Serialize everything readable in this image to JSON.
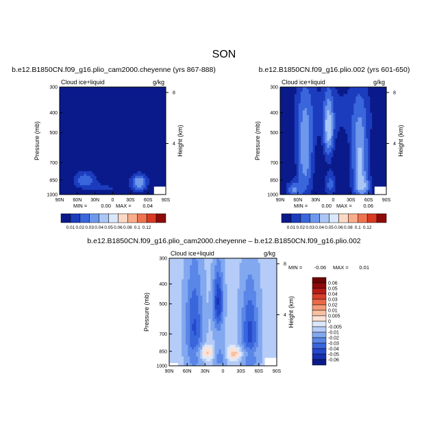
{
  "figure": {
    "title": "SON"
  },
  "chart_data": [
    {
      "type": "heatmap",
      "title": "b.e12.B1850CN.f09_g16.plio_cam2000.cheyenne (yrs 867-888)",
      "variable": "Cloud ice+liquid",
      "units": "g/kg",
      "xlabel": "",
      "ylabel": "Pressure (mb)",
      "y2label": "Height (km)",
      "xticks": [
        "90N",
        "60N",
        "30N",
        "0",
        "30S",
        "60S",
        "90S"
      ],
      "yticks": [
        300,
        400,
        500,
        700,
        850,
        1000
      ],
      "y2ticks": [
        8,
        4
      ],
      "xlim": [
        90,
        -90
      ],
      "ylim": [
        1000,
        300
      ],
      "min_label": "MIN =",
      "min_value": "0.00",
      "max_label": "MAX =",
      "max_value": "0.04",
      "levels": [
        0.01,
        0.02,
        0.03,
        0.04,
        0.05,
        0.06,
        0.08,
        0.1,
        0.12
      ],
      "level_labels": [
        "0.01",
        "0.02",
        "0.03",
        "0.04",
        "0.05",
        "0.06",
        "0.08",
        "0.1",
        "0.12"
      ],
      "colors": [
        "#0a1a8a",
        "#1c3cbe",
        "#3a66dc",
        "#6f98ec",
        "#a9c6f7",
        "#d8e7fb",
        "#fbd8c6",
        "#f7ad8c",
        "#ef7350",
        "#d83a22",
        "#8e0a0a"
      ],
      "features": [
        {
          "lat": 47,
          "p": 845,
          "sx": 14,
          "sp": 55,
          "amp": 0.028
        },
        {
          "lat": -45,
          "p": 875,
          "sx": 10,
          "sp": 60,
          "amp": 0.04
        },
        {
          "lat": 15,
          "p": 930,
          "sx": 25,
          "sp": 35,
          "amp": 0.012
        }
      ],
      "missing": [
        {
          "lat_from": -70,
          "lat_to": -90,
          "p_from": 915,
          "p_to": 1000
        }
      ]
    },
    {
      "type": "heatmap",
      "title": "b.e12.B1850CN.f09_g16.plio.002 (yrs 601-650)",
      "variable": "Cloud ice+liquid",
      "units": "g/kg",
      "xlabel": "",
      "ylabel": "Pressure (mb)",
      "y2label": "Height (km)",
      "xticks": [
        "90N",
        "60N",
        "30N",
        "0",
        "30S",
        "60S",
        "90S"
      ],
      "yticks": [
        300,
        400,
        500,
        700,
        850,
        1000
      ],
      "y2ticks": [
        8,
        4
      ],
      "xlim": [
        90,
        -90
      ],
      "ylim": [
        1000,
        300
      ],
      "min_label": "MIN =",
      "min_value": "0.00",
      "max_label": "MAX =",
      "max_value": "0.06",
      "levels": [
        0.01,
        0.02,
        0.03,
        0.04,
        0.05,
        0.06,
        0.08,
        0.1,
        0.12
      ],
      "level_labels": [
        "0.01",
        "0.02",
        "0.03",
        "0.04",
        "0.05",
        "0.06",
        "0.08",
        "0.1",
        "0.12"
      ],
      "colors": [
        "#0a1a8a",
        "#1c3cbe",
        "#3a66dc",
        "#6f98ec",
        "#a9c6f7",
        "#d8e7fb",
        "#fbd8c6",
        "#f7ad8c",
        "#ef7350",
        "#d83a22",
        "#8e0a0a"
      ],
      "features": [
        {
          "lat": 48,
          "p": 650,
          "sx": 10,
          "sp": 260,
          "amp": 0.036
        },
        {
          "lat": -45,
          "p": 700,
          "sx": 10,
          "sp": 240,
          "amp": 0.042
        },
        {
          "lat": 8,
          "p": 490,
          "sx": 6,
          "sp": 120,
          "amp": 0.04
        },
        {
          "lat": 5,
          "p": 900,
          "sx": 7,
          "sp": 90,
          "amp": 0.024
        },
        {
          "lat": 68,
          "p": 950,
          "sx": 9,
          "sp": 60,
          "amp": 0.03
        },
        {
          "lat": -52,
          "p": 920,
          "sx": 10,
          "sp": 70,
          "amp": 0.022
        },
        {
          "lat": 0,
          "p": 400,
          "sx": 60,
          "sp": 120,
          "amp": 0.012
        }
      ],
      "missing": [
        {
          "lat_from": -70,
          "lat_to": -90,
          "p_from": 915,
          "p_to": 1000
        }
      ]
    },
    {
      "type": "heatmap",
      "title": "b.e12.B1850CN.f09_g16.plio_cam2000.cheyenne – b.e12.B1850CN.f09_g16.plio.002",
      "variable": "Cloud ice+liquid",
      "units": "g/kg",
      "xlabel": "",
      "ylabel": "Pressure (mb)",
      "y2label": "Height (km)",
      "xticks": [
        "90N",
        "60N",
        "30N",
        "0",
        "30S",
        "60S",
        "90S"
      ],
      "yticks": [
        300,
        400,
        500,
        700,
        850,
        1000
      ],
      "y2ticks": [
        8,
        4
      ],
      "xlim": [
        90,
        -90
      ],
      "ylim": [
        1000,
        300
      ],
      "min_label": "MIN =",
      "min_value": "-0.06",
      "max_label": "MAX =",
      "max_value": "0.01",
      "levels": [
        -0.06,
        -0.05,
        -0.04,
        -0.03,
        -0.02,
        -0.01,
        -0.005,
        0,
        0.005,
        0.01,
        0.02,
        0.03,
        0.04,
        0.05,
        0.06
      ],
      "level_labels": [
        "0.06",
        "0.05",
        "0.04",
        "0.03",
        "0.02",
        "0.01",
        "0.005",
        "0",
        "-0.005",
        "-0.01",
        "-0.02",
        "-0.03",
        "-0.04",
        "-0.05",
        "-0.06"
      ],
      "colors": [
        "#0a1a8a",
        "#1530b0",
        "#2448cc",
        "#3a66dc",
        "#5a86e8",
        "#82a8f0",
        "#b4ccf7",
        "#dde9fb",
        "#fbe2d6",
        "#f8c0a4",
        "#f39a76",
        "#ea6a48",
        "#d8402a",
        "#b81c18",
        "#8e0a0a",
        "#6e0404"
      ],
      "colorbar_order": "descending",
      "base": -0.007,
      "features": [
        {
          "lat": 48,
          "p": 650,
          "sx": 10,
          "sp": 260,
          "amp": -0.034
        },
        {
          "lat": -45,
          "p": 700,
          "sx": 10,
          "sp": 240,
          "amp": -0.036
        },
        {
          "lat": 8,
          "p": 490,
          "sx": 6,
          "sp": 120,
          "amp": -0.044
        },
        {
          "lat": 5,
          "p": 900,
          "sx": 7,
          "sp": 90,
          "amp": -0.02
        },
        {
          "lat": 30,
          "p": 860,
          "sx": 12,
          "sp": 50,
          "amp": 0.016
        },
        {
          "lat": -20,
          "p": 870,
          "sx": 12,
          "sp": 45,
          "amp": 0.015
        },
        {
          "lat": -45,
          "p": 860,
          "sx": 8,
          "sp": 40,
          "amp": 0.012
        }
      ],
      "missing": [
        {
          "lat_from": -70,
          "lat_to": -90,
          "p_from": 915,
          "p_to": 1000
        },
        {
          "lat_from": 90,
          "lat_to": 75,
          "p_from": 970,
          "p_to": 1000
        }
      ]
    }
  ]
}
